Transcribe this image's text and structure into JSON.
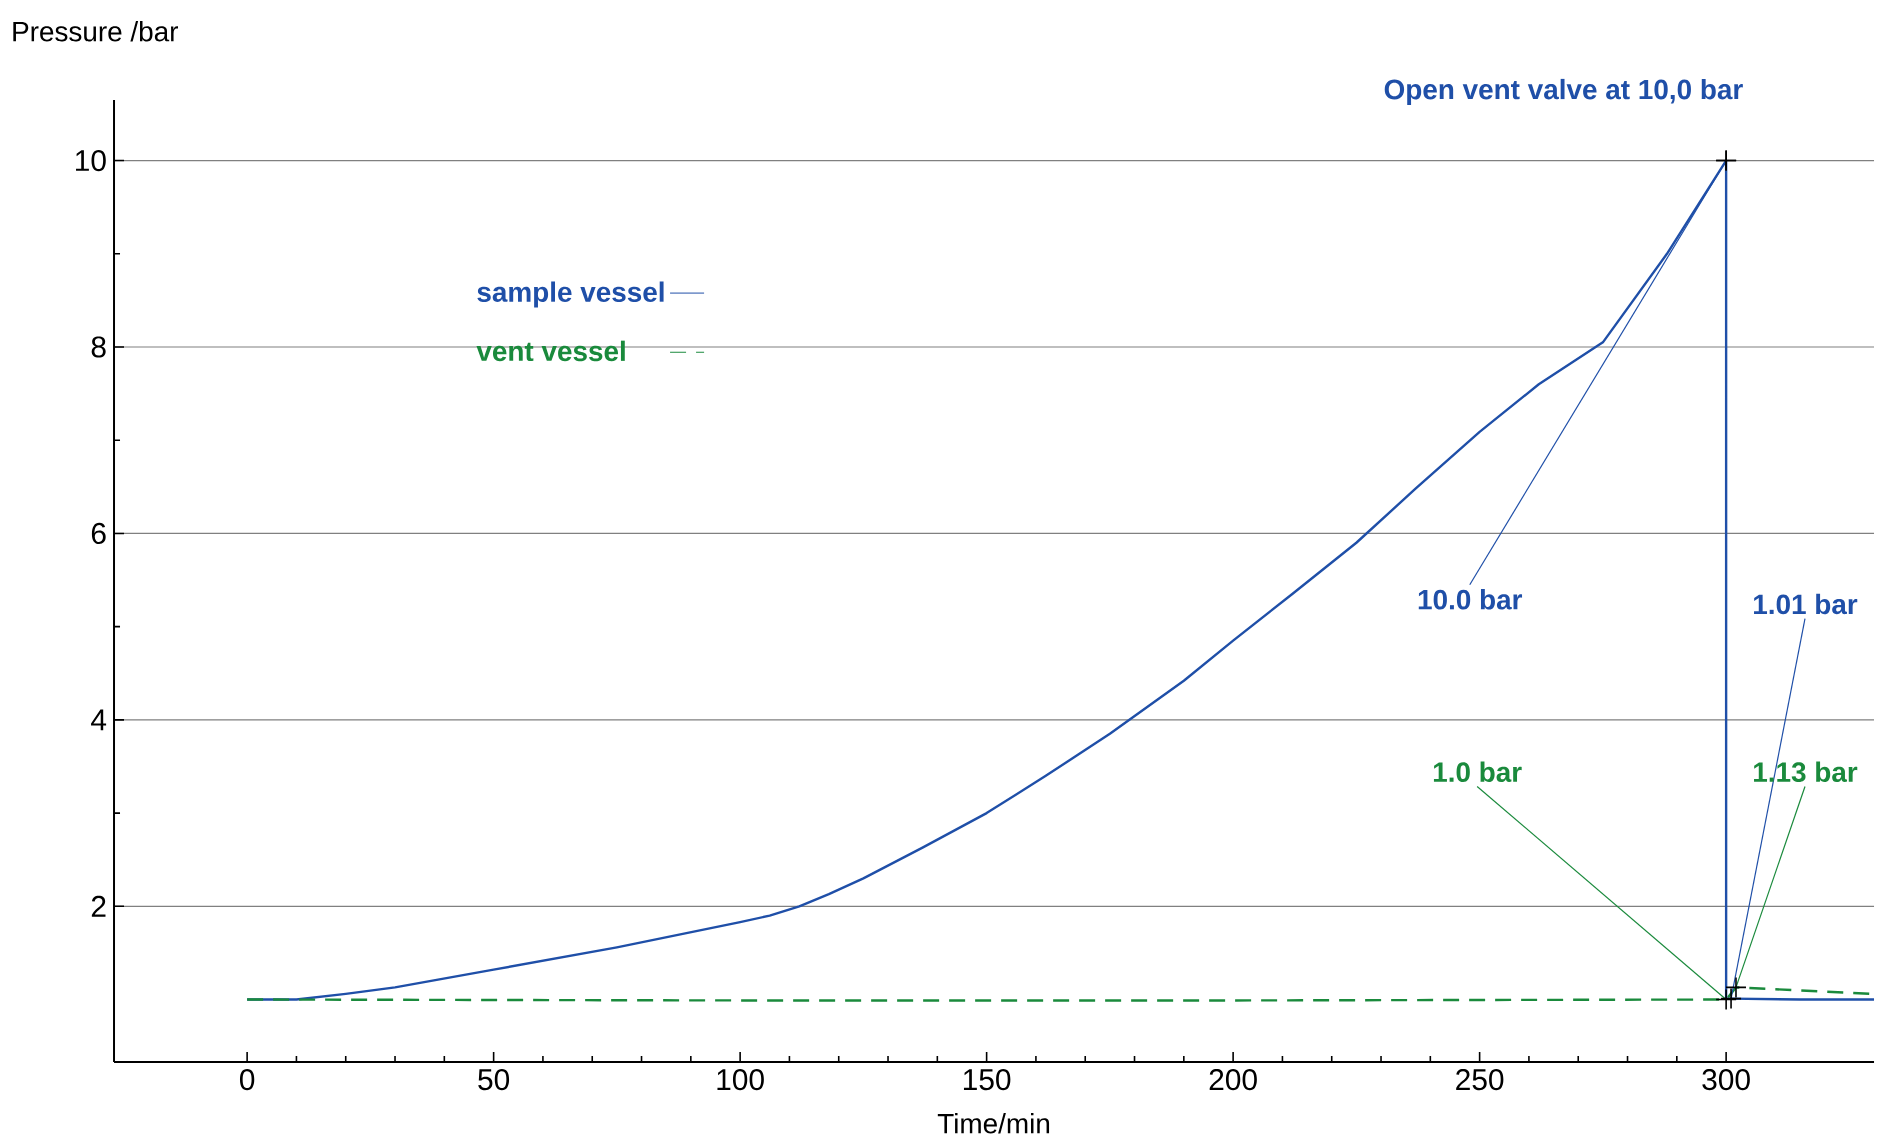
{
  "chart_data": {
    "type": "line",
    "xlabel": "Time/min",
    "ylabel": "Pressure /bar",
    "xlim": [
      -27,
      330
    ],
    "ylim": [
      0.33,
      10.65
    ],
    "xticks": [
      0,
      50,
      100,
      150,
      200,
      250,
      300
    ],
    "yticks": [
      2,
      4,
      6,
      8,
      10
    ],
    "grid": "y",
    "legend": "top left",
    "series": [
      {
        "name": "sample vessel",
        "color": "#1f4fa8",
        "line_style": "solid",
        "x": [
          0,
          10,
          20,
          30,
          50,
          75,
          100,
          106,
          112,
          118,
          125,
          137,
          150,
          162,
          175,
          190,
          200,
          212,
          225,
          237,
          250,
          262,
          275,
          288,
          300,
          300,
          301,
          315,
          330
        ],
        "values": [
          1.0,
          1.0,
          1.06,
          1.13,
          1.32,
          1.56,
          1.83,
          1.9,
          2.0,
          2.13,
          2.3,
          2.63,
          3.0,
          3.4,
          3.85,
          4.42,
          4.85,
          5.35,
          5.9,
          6.48,
          7.09,
          7.6,
          8.05,
          9.0,
          10.0,
          1.01,
          1.01,
          1.0,
          1.0
        ]
      },
      {
        "name": "vent vessel",
        "color": "#1a8a3c",
        "line_style": "dashed",
        "x": [
          0,
          100,
          200,
          300,
          302,
          330
        ],
        "values": [
          1.0,
          0.99,
          0.99,
          1.0,
          1.13,
          1.06
        ]
      }
    ],
    "annotations": [
      {
        "text": "Open vent valve at 10,0 bar",
        "x": 300,
        "y": 10.0
      },
      {
        "text": "10.0 bar",
        "x": 300,
        "y": 10.0
      },
      {
        "text": "1.0 bar",
        "x": 300,
        "y": 1.0
      },
      {
        "text": "1.01 bar",
        "x": 301,
        "y": 1.01
      },
      {
        "text": "1.13 bar",
        "x": 302,
        "y": 1.13
      }
    ]
  }
}
